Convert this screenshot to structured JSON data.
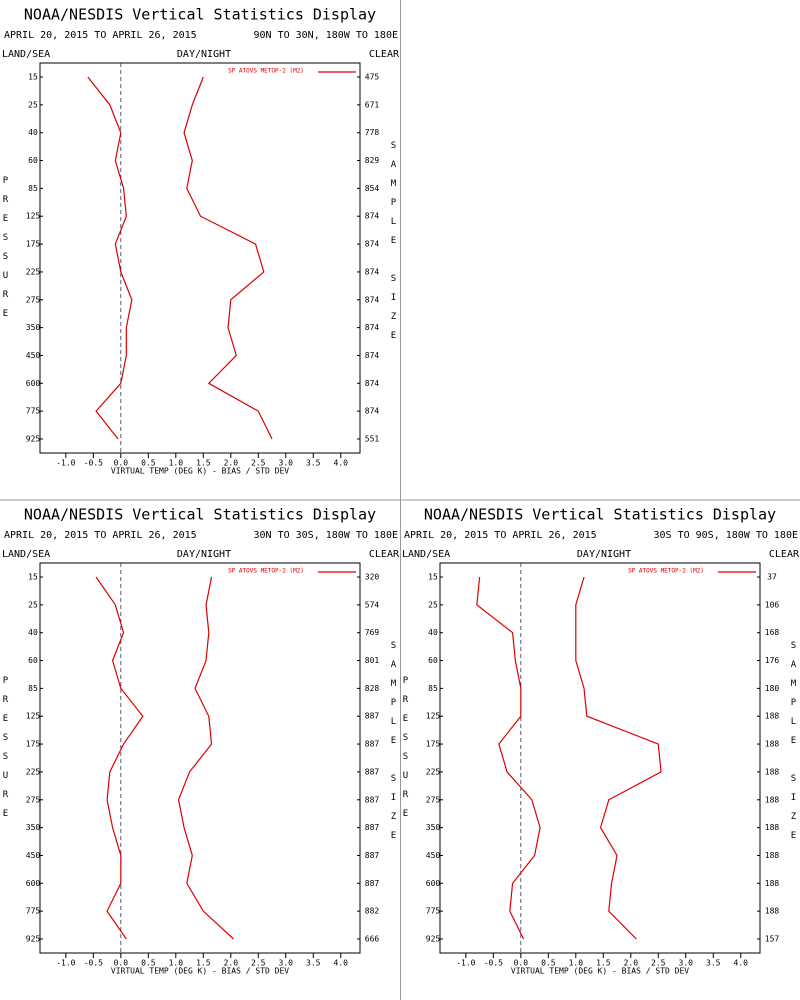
{
  "chart_data": [
    {
      "type": "line",
      "title": "NOAA/NESDIS Vertical Statistics Display",
      "subtitle": "APRIL 20, 2015 TO APRIL 26, 2015",
      "region": "90N TO 30N, 180W TO 180E",
      "land_sea": "LAND/SEA",
      "day_night": "DAY/NIGHT",
      "clear": "CLEAR",
      "ylabel": "PRESSURE",
      "y2label": "SAMPLE SIZE",
      "xlabel": "VIRTUAL TEMP (DEG K) - BIAS / STD DEV",
      "categories": [
        "15",
        "25",
        "40",
        "60",
        "85",
        "125",
        "175",
        "225",
        "275",
        "350",
        "450",
        "600",
        "775",
        "925"
      ],
      "series": [
        {
          "name": "SP ATOVS METOP-2 (M2)",
          "color": "#dd0000",
          "values": [
            -0.6,
            -0.2,
            0.0,
            -0.1,
            0.05,
            0.1,
            -0.1,
            0.0,
            0.2,
            0.1,
            0.1,
            0.0,
            -0.45,
            -0.05
          ]
        },
        {
          "color": "#dd0000",
          "values": [
            1.5,
            1.3,
            1.15,
            1.3,
            1.2,
            1.45,
            2.45,
            2.6,
            2.0,
            1.95,
            2.1,
            1.6,
            2.5,
            2.75
          ]
        }
      ],
      "sample_size": [
        475,
        671,
        778,
        829,
        854,
        874,
        874,
        874,
        874,
        874,
        874,
        874,
        874,
        551
      ],
      "xlim": [
        -1.47,
        4.35
      ],
      "xticks": [
        {
          "value": -1,
          "label": "-1.0"
        },
        -0.5,
        {
          "value": 0,
          "label": "0.0"
        },
        0.5,
        {
          "value": 1,
          "label": "1.0"
        },
        1.5,
        {
          "value": 2,
          "label": "2.0"
        },
        2.5,
        {
          "value": 3,
          "label": "3.0"
        },
        3.5,
        {
          "value": 4,
          "label": "4.0"
        }
      ]
    },
    {
      "type": "line",
      "title": "NOAA/NESDIS Vertical Statistics Display",
      "subtitle": "APRIL 20, 2015 TO APRIL 26, 2015",
      "region": "30N TO 30S, 180W TO 180E",
      "land_sea": "LAND/SEA",
      "day_night": "DAY/NIGHT",
      "clear": "CLEAR",
      "ylabel": "PRESSURE",
      "y2label": "SAMPLE SIZE",
      "xlabel": "VIRTUAL TEMP (DEG K) - BIAS / STD DEV",
      "categories": [
        "15",
        "25",
        "40",
        "60",
        "85",
        "125",
        "175",
        "225",
        "275",
        "350",
        "450",
        "600",
        "775",
        "925"
      ],
      "series": [
        {
          "name": "SP ATOVS METOP-2 (M2)",
          "color": "#dd0000",
          "values": [
            -0.45,
            -0.1,
            0.05,
            -0.15,
            0.0,
            0.4,
            0.05,
            -0.2,
            -0.25,
            -0.15,
            0.0,
            0.0,
            -0.25,
            0.1
          ]
        },
        {
          "color": "#dd0000",
          "values": [
            1.65,
            1.55,
            1.6,
            1.55,
            1.35,
            1.6,
            1.65,
            1.25,
            1.05,
            1.15,
            1.3,
            1.2,
            1.5,
            2.05
          ]
        }
      ],
      "sample_size": [
        320,
        574,
        769,
        801,
        828,
        887,
        887,
        887,
        887,
        887,
        887,
        887,
        882,
        666
      ],
      "xlim": [
        -1.47,
        4.35
      ],
      "xticks": [
        {
          "value": -1,
          "label": "-1.0"
        },
        -0.5,
        {
          "value": 0,
          "label": "0.0"
        },
        0.5,
        {
          "value": 1,
          "label": "1.0"
        },
        1.5,
        {
          "value": 2,
          "label": "2.0"
        },
        2.5,
        {
          "value": 3,
          "label": "3.0"
        },
        3.5,
        {
          "value": 4,
          "label": "4.0"
        }
      ]
    },
    {
      "type": "line",
      "title": "NOAA/NESDIS Vertical Statistics Display",
      "subtitle": "APRIL 20, 2015 TO APRIL 26, 2015",
      "region": "30S TO 90S, 180W TO 180E",
      "land_sea": "LAND/SEA",
      "day_night": "DAY/NIGHT",
      "clear": "CLEAR",
      "ylabel": "PRESSURE",
      "y2label": "SAMPLE SIZE",
      "xlabel": "VIRTUAL TEMP (DEG K) - BIAS / STD DEV",
      "categories": [
        "15",
        "25",
        "40",
        "60",
        "85",
        "125",
        "175",
        "225",
        "275",
        "350",
        "450",
        "600",
        "775",
        "925"
      ],
      "series": [
        {
          "name": "SP ATOVS METOP-2 (M2)",
          "color": "#dd0000",
          "values": [
            -0.75,
            -0.8,
            -0.15,
            -0.1,
            0.0,
            0.0,
            -0.4,
            -0.25,
            0.2,
            0.35,
            0.25,
            -0.15,
            -0.2,
            0.05
          ]
        },
        {
          "color": "#dd0000",
          "values": [
            1.15,
            1.0,
            1.0,
            1.0,
            1.15,
            1.2,
            2.5,
            2.55,
            1.6,
            1.45,
            1.75,
            1.65,
            1.6,
            2.1
          ]
        }
      ],
      "sample_size": [
        37,
        106,
        168,
        176,
        180,
        188,
        188,
        188,
        188,
        188,
        188,
        188,
        188,
        157
      ],
      "xlim": [
        -1.47,
        4.35
      ],
      "xticks": [
        {
          "value": -1,
          "label": "-1.0"
        },
        -0.5,
        {
          "value": 0,
          "label": "0.0"
        },
        0.5,
        {
          "value": 1,
          "label": "1.0"
        },
        1.5,
        {
          "value": 2,
          "label": "2.0"
        },
        2.5,
        {
          "value": 3,
          "label": "3.0"
        },
        3.5,
        {
          "value": 4,
          "label": "4.0"
        }
      ]
    }
  ]
}
